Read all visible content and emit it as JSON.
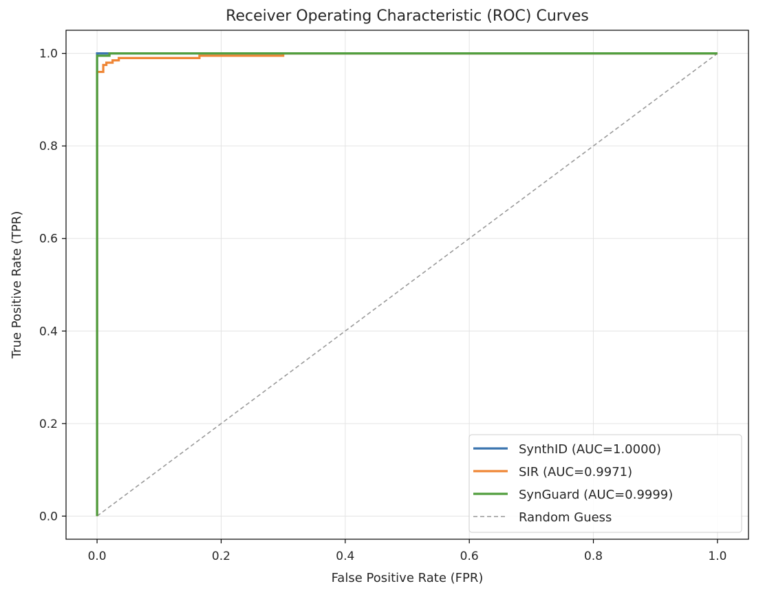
{
  "chart_data": {
    "type": "line",
    "title": "Receiver Operating Characteristic (ROC) Curves",
    "xlabel": "False Positive Rate (FPR)",
    "ylabel": "True Positive Rate (TPR)",
    "xlim": [
      -0.05,
      1.05
    ],
    "ylim": [
      -0.05,
      1.05
    ],
    "xticks": [
      "0.0",
      "0.2",
      "0.4",
      "0.6",
      "0.8",
      "1.0"
    ],
    "yticks": [
      "0.0",
      "0.2",
      "0.4",
      "0.6",
      "0.8",
      "1.0"
    ],
    "grid": true,
    "legend_position": "lower-right",
    "series": [
      {
        "name": "SynthID (AUC=1.0000)",
        "color": "#3b75af",
        "style": "solid",
        "x": [
          0.0,
          0.0,
          0.03,
          1.0
        ],
        "y": [
          0.0,
          1.0,
          1.0,
          1.0
        ]
      },
      {
        "name": "SIR (AUC=0.9971)",
        "color": "#ef8636",
        "style": "solid",
        "x": [
          0.0,
          0.0,
          0.01,
          0.01,
          0.015,
          0.015,
          0.025,
          0.025,
          0.035,
          0.035,
          0.165,
          0.165,
          0.3,
          0.3,
          1.0
        ],
        "y": [
          0.0,
          0.96,
          0.96,
          0.975,
          0.975,
          0.98,
          0.98,
          0.985,
          0.985,
          0.99,
          0.99,
          0.995,
          0.995,
          1.0,
          1.0
        ]
      },
      {
        "name": "SynGuard (AUC=0.9999)",
        "color": "#519e3e",
        "style": "solid",
        "x": [
          0.0,
          0.0,
          0.02,
          0.02,
          1.0
        ],
        "y": [
          0.0,
          0.995,
          0.995,
          1.0,
          1.0
        ]
      },
      {
        "name": "Random Guess",
        "color": "#999999",
        "style": "dashed",
        "x": [
          0.0,
          1.0
        ],
        "y": [
          0.0,
          1.0
        ]
      }
    ]
  }
}
